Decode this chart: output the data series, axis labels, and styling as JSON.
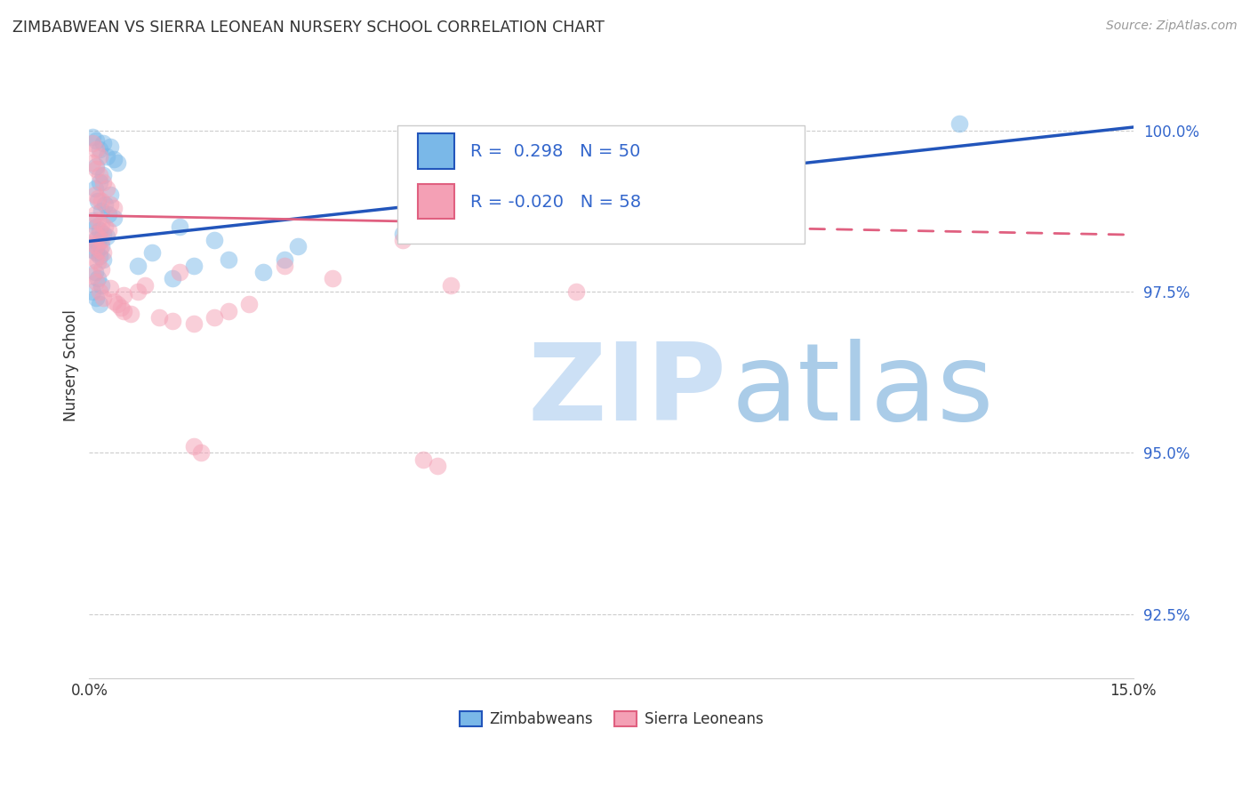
{
  "title": "ZIMBABWEAN VS SIERRA LEONEAN NURSERY SCHOOL CORRELATION CHART",
  "source": "Source: ZipAtlas.com",
  "ylabel": "Nursery School",
  "ytick_values": [
    92.5,
    95.0,
    97.5,
    100.0
  ],
  "xlim": [
    0.0,
    15.0
  ],
  "ylim": [
    91.5,
    101.2
  ],
  "legend_zim": "Zimbabweans",
  "legend_sl": "Sierra Leoneans",
  "r_zim": 0.298,
  "n_zim": 50,
  "r_sl": -0.02,
  "n_sl": 58,
  "color_zim": "#7ab8e8",
  "color_sl": "#f4a0b5",
  "trendline_zim_color": "#2255bb",
  "trendline_sl_color": "#e06080",
  "text_blue": "#3366cc",
  "watermark_zip_color": "#cce0f5",
  "watermark_atlas_color": "#aacce8",
  "trendline_zim_x0": 0.0,
  "trendline_zim_y0": 98.28,
  "trendline_zim_x1": 15.0,
  "trendline_zim_y1": 100.05,
  "trendline_sl_x0": 0.0,
  "trendline_sl_y0": 98.68,
  "trendline_sl_x1": 15.0,
  "trendline_sl_y1": 98.38,
  "trendline_sl_solid_end": 4.5,
  "zim_points": [
    [
      0.05,
      99.9
    ],
    [
      0.1,
      99.85
    ],
    [
      0.2,
      99.8
    ],
    [
      0.3,
      99.75
    ],
    [
      0.15,
      99.7
    ],
    [
      0.25,
      99.6
    ],
    [
      0.35,
      99.55
    ],
    [
      0.4,
      99.5
    ],
    [
      0.1,
      99.45
    ],
    [
      0.2,
      99.3
    ],
    [
      0.15,
      99.2
    ],
    [
      0.08,
      99.1
    ],
    [
      0.3,
      99.0
    ],
    [
      0.12,
      98.9
    ],
    [
      0.22,
      98.85
    ],
    [
      0.18,
      98.75
    ],
    [
      0.28,
      98.7
    ],
    [
      0.35,
      98.65
    ],
    [
      0.05,
      98.6
    ],
    [
      0.1,
      98.5
    ],
    [
      0.15,
      98.45
    ],
    [
      0.2,
      98.4
    ],
    [
      0.25,
      98.35
    ],
    [
      0.08,
      98.3
    ],
    [
      0.12,
      98.25
    ],
    [
      0.18,
      98.2
    ],
    [
      0.05,
      98.15
    ],
    [
      0.1,
      98.1
    ],
    [
      0.15,
      98.05
    ],
    [
      0.2,
      98.0
    ],
    [
      0.08,
      97.8
    ],
    [
      0.12,
      97.7
    ],
    [
      0.18,
      97.6
    ],
    [
      0.05,
      97.5
    ],
    [
      0.1,
      97.4
    ],
    [
      0.15,
      97.3
    ],
    [
      1.2,
      97.7
    ],
    [
      1.5,
      97.9
    ],
    [
      2.0,
      98.0
    ],
    [
      2.5,
      97.8
    ],
    [
      3.0,
      98.2
    ],
    [
      4.5,
      98.4
    ],
    [
      5.5,
      98.6
    ],
    [
      6.5,
      99.1
    ],
    [
      12.5,
      100.1
    ],
    [
      1.8,
      98.3
    ],
    [
      0.7,
      97.9
    ],
    [
      0.9,
      98.1
    ],
    [
      1.3,
      98.5
    ],
    [
      2.8,
      98.0
    ]
  ],
  "sl_points": [
    [
      0.05,
      99.8
    ],
    [
      0.1,
      99.7
    ],
    [
      0.15,
      99.6
    ],
    [
      0.05,
      99.5
    ],
    [
      0.1,
      99.4
    ],
    [
      0.15,
      99.3
    ],
    [
      0.2,
      99.2
    ],
    [
      0.25,
      99.1
    ],
    [
      0.08,
      99.0
    ],
    [
      0.12,
      98.95
    ],
    [
      0.18,
      98.9
    ],
    [
      0.3,
      98.85
    ],
    [
      0.35,
      98.8
    ],
    [
      0.08,
      98.7
    ],
    [
      0.12,
      98.6
    ],
    [
      0.18,
      98.55
    ],
    [
      0.22,
      98.5
    ],
    [
      0.28,
      98.45
    ],
    [
      0.08,
      98.4
    ],
    [
      0.12,
      98.35
    ],
    [
      0.18,
      98.3
    ],
    [
      0.05,
      98.25
    ],
    [
      0.1,
      98.2
    ],
    [
      0.15,
      98.15
    ],
    [
      0.2,
      98.1
    ],
    [
      0.08,
      98.0
    ],
    [
      0.12,
      97.95
    ],
    [
      0.18,
      97.85
    ],
    [
      0.05,
      97.75
    ],
    [
      0.1,
      97.65
    ],
    [
      0.15,
      97.5
    ],
    [
      0.2,
      97.4
    ],
    [
      0.35,
      97.35
    ],
    [
      0.4,
      97.3
    ],
    [
      0.45,
      97.25
    ],
    [
      0.5,
      97.2
    ],
    [
      0.6,
      97.15
    ],
    [
      1.0,
      97.1
    ],
    [
      1.2,
      97.05
    ],
    [
      1.5,
      97.0
    ],
    [
      1.8,
      97.1
    ],
    [
      2.0,
      97.2
    ],
    [
      2.3,
      97.3
    ],
    [
      0.7,
      97.5
    ],
    [
      4.5,
      98.3
    ],
    [
      0.8,
      97.6
    ],
    [
      1.3,
      97.8
    ],
    [
      0.3,
      97.55
    ],
    [
      0.5,
      97.45
    ],
    [
      2.8,
      97.9
    ],
    [
      1.5,
      95.1
    ],
    [
      1.6,
      95.0
    ],
    [
      4.8,
      94.9
    ],
    [
      5.0,
      94.8
    ],
    [
      5.2,
      97.6
    ],
    [
      7.0,
      97.5
    ],
    [
      3.5,
      97.7
    ],
    [
      10.0,
      99.0
    ]
  ]
}
